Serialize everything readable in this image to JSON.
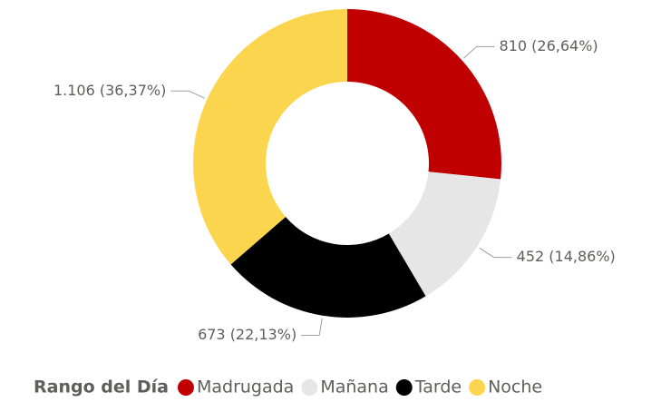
{
  "chart_data": {
    "type": "donut",
    "categories": [
      "Madrugada",
      "Mañana",
      "Tarde",
      "Noche"
    ],
    "values": [
      810,
      452,
      673,
      1106
    ],
    "value_labels": [
      "810 (26,64%)",
      "452 (14,86%)",
      "673 (22,13%)",
      "1.106 (36,37%)"
    ],
    "colors": [
      "#c00000",
      "#e6e6e6",
      "#000000",
      "#fcd54f"
    ],
    "legend_title": "Rango del Día",
    "legend": "bottom"
  }
}
